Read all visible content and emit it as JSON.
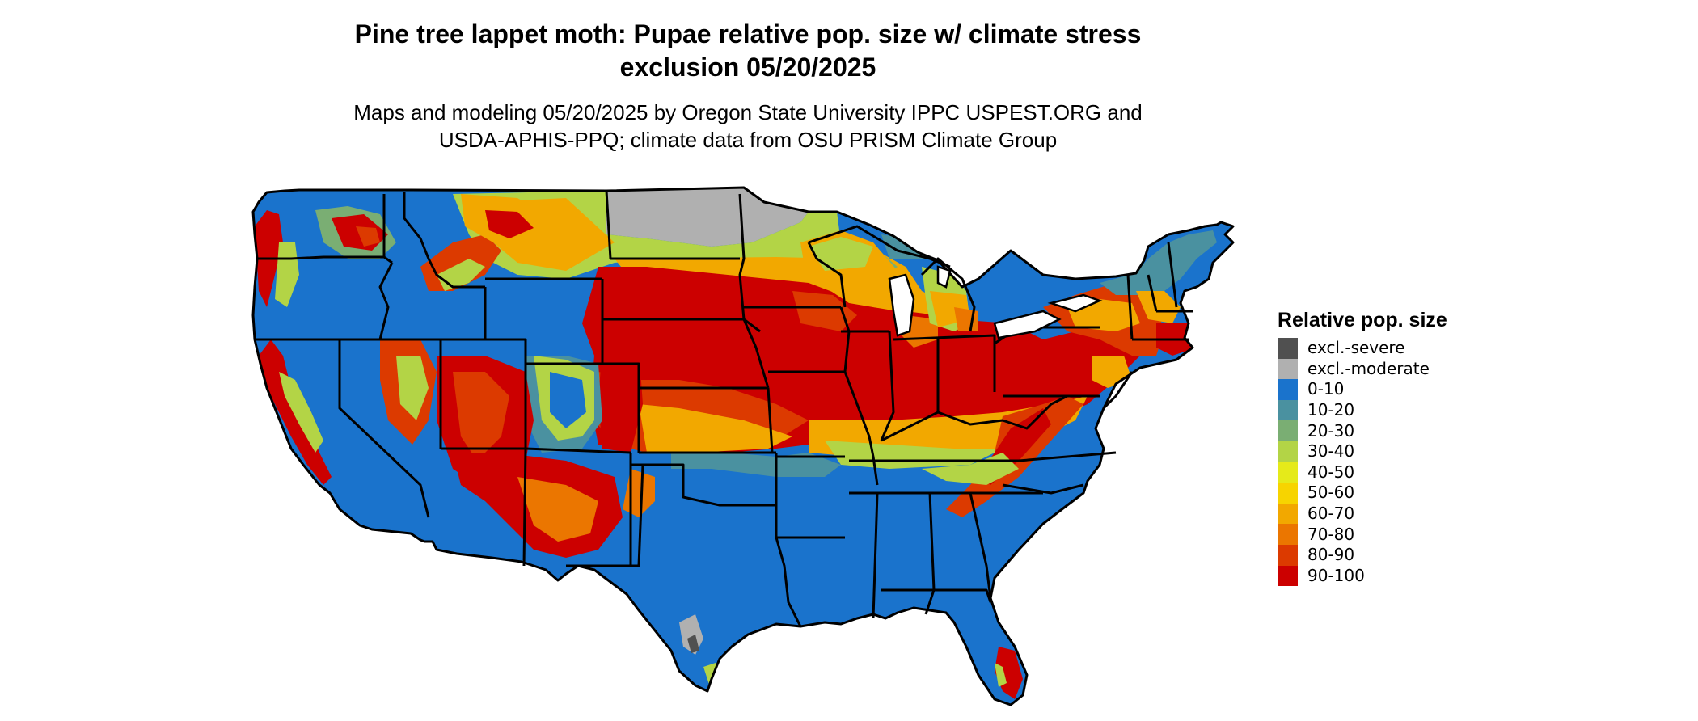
{
  "map": {
    "title_line1": "Pine tree lappet moth: Pupae relative pop. size w/ climate stress",
    "title_line2": "exclusion 05/20/2025",
    "subtitle_line1": "Maps and modeling 05/20/2025 by Oregon State University IPPC USPEST.ORG and",
    "subtitle_line2": "USDA-APHIS-PPQ; climate data from OSU PRISM Climate Group"
  },
  "legend": {
    "title": "Relative pop. size",
    "items": [
      {
        "label": "excl.-severe",
        "color": "#505050"
      },
      {
        "label": "excl.-moderate",
        "color": "#b0b0b0"
      },
      {
        "label": "0-10",
        "color": "#1a73cc"
      },
      {
        "label": "10-20",
        "color": "#4a91a0"
      },
      {
        "label": "20-30",
        "color": "#7aae73"
      },
      {
        "label": "30-40",
        "color": "#b3d446"
      },
      {
        "label": "40-50",
        "color": "#e5ea1a"
      },
      {
        "label": "50-60",
        "color": "#f7d400"
      },
      {
        "label": "60-70",
        "color": "#f2a800"
      },
      {
        "label": "70-80",
        "color": "#eb7600"
      },
      {
        "label": "80-90",
        "color": "#dc3a00"
      },
      {
        "label": "90-100",
        "color": "#cc0000"
      }
    ]
  }
}
